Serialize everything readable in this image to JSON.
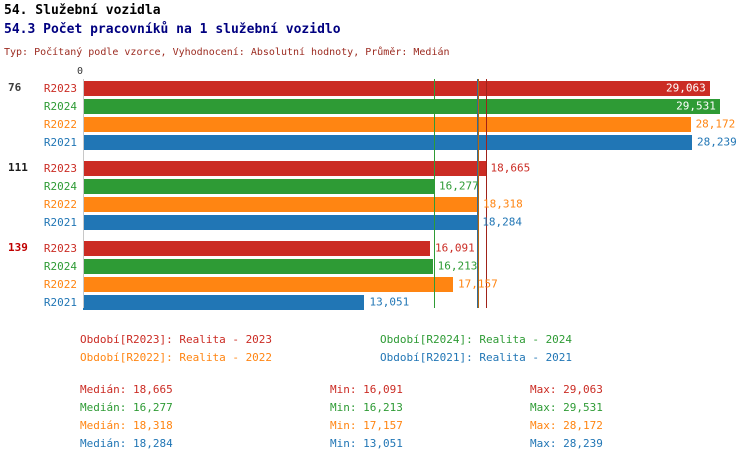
{
  "header": {
    "title1": "54. Služební vozidla",
    "title2": "54.3 Počet pracovníků na 1 služební vozidlo",
    "subtitle": "Typ: Počítaný podle vzorce, Vyhodnocení: Absolutní hodnoty, Průměr: Medián"
  },
  "chart_data": {
    "type": "bar",
    "orientation": "horizontal",
    "title": "54.3 Počet pracovníků na 1 služební vozidlo",
    "xlabel": "",
    "ylabel": "",
    "grid": false,
    "axis": {
      "min": 0,
      "max": 30,
      "zero_label": "0"
    },
    "series_colors": {
      "R2023": "#cb2c24",
      "R2024": "#2e9b35",
      "R2022": "#ff8512",
      "R2021": "#2176b5"
    },
    "categories": [
      "76",
      "111",
      "139"
    ],
    "groups": [
      {
        "label": "76",
        "label_color": "#3d3d3d",
        "bars": [
          {
            "series": "R2023",
            "value": 29.063,
            "display": "29,063"
          },
          {
            "series": "R2024",
            "value": 29.531,
            "display": "29,531"
          },
          {
            "series": "R2022",
            "value": 28.172,
            "display": "28,172"
          },
          {
            "series": "R2021",
            "value": 28.239,
            "display": "28,239"
          }
        ]
      },
      {
        "label": "111",
        "label_color": "#1c1c1c",
        "bars": [
          {
            "series": "R2023",
            "value": 18.665,
            "display": "18,665"
          },
          {
            "series": "R2024",
            "value": 16.277,
            "display": "16,277"
          },
          {
            "series": "R2022",
            "value": 18.318,
            "display": "18,318"
          },
          {
            "series": "R2021",
            "value": 18.284,
            "display": "18,284"
          }
        ]
      },
      {
        "label": "139",
        "label_color": "#c00000",
        "bars": [
          {
            "series": "R2023",
            "value": 16.091,
            "display": "16,091"
          },
          {
            "series": "R2024",
            "value": 16.213,
            "display": "16,213"
          },
          {
            "series": "R2022",
            "value": 17.157,
            "display": "17,157"
          },
          {
            "series": "R2021",
            "value": 13.051,
            "display": "13,051"
          }
        ]
      }
    ],
    "median_lines": [
      {
        "series": "R2023",
        "value": 18.665,
        "color": "#a02219"
      },
      {
        "series": "R2024",
        "value": 16.277,
        "color": "#2e9b35"
      },
      {
        "series": "R2022",
        "value": 18.318,
        "color": "#b5690f"
      },
      {
        "series": "R2021",
        "value": 18.284,
        "color": "#356a92"
      }
    ]
  },
  "legend": [
    {
      "label": "Období[R2023]: Realita - 2023",
      "color": "#cb2c24"
    },
    {
      "label": "Období[R2024]: Realita - 2024",
      "color": "#2e9b35"
    },
    {
      "label": "Období[R2022]: Realita - 2022",
      "color": "#ff8512"
    },
    {
      "label": "Období[R2021]: Realita - 2021",
      "color": "#2176b5"
    }
  ],
  "stats": [
    {
      "median": "Medián: 18,665",
      "min": "Min: 16,091",
      "max": "Max: 29,063",
      "color": "#cb2c24"
    },
    {
      "median": "Medián: 16,277",
      "min": "Min: 16,213",
      "max": "Max: 29,531",
      "color": "#2e9b35"
    },
    {
      "median": "Medián: 18,318",
      "min": "Min: 17,157",
      "max": "Max: 28,172",
      "color": "#ff8512"
    },
    {
      "median": "Medián: 18,284",
      "min": "Min: 13,051",
      "max": "Max: 28,239",
      "color": "#2176b5"
    }
  ]
}
